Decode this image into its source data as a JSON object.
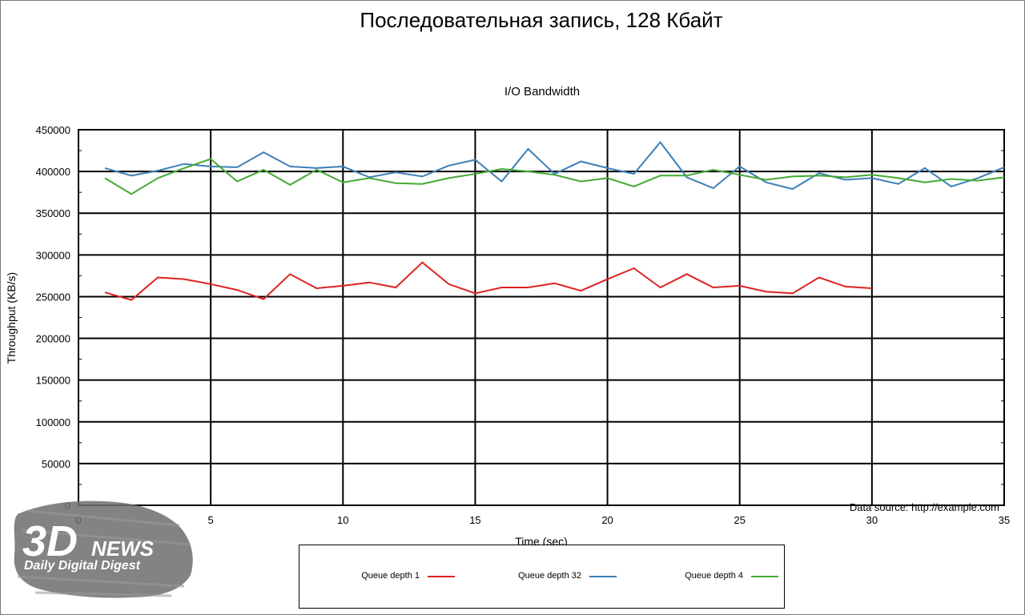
{
  "page_title": "Последовательная запись, 128 Кбайт",
  "watermark": {
    "brand_big": "3D",
    "brand_news": "NEWS",
    "tagline": "Daily Digital Digest"
  },
  "colors": {
    "red": "#dd2222",
    "blue": "#3c7fb8",
    "green": "#44aa33",
    "grid": "#000000"
  },
  "chart_data": {
    "type": "line",
    "title": "I/O Bandwidth",
    "xlabel": "Time (sec)",
    "ylabel": "Throughput (KB/s)",
    "xlim": [
      0,
      35
    ],
    "ylim": [
      0,
      450000
    ],
    "xticks": [
      0,
      5,
      10,
      15,
      20,
      25,
      30,
      35
    ],
    "yticks": [
      0,
      50000,
      100000,
      150000,
      200000,
      250000,
      300000,
      350000,
      400000,
      450000
    ],
    "grid": true,
    "annotation": "Data source: http://example.com",
    "legend_position": "bottom",
    "series": [
      {
        "name": "Queue depth 1",
        "color": "#dd2222",
        "x": [
          1,
          2,
          3,
          4,
          5,
          6,
          7,
          8,
          9,
          10,
          11,
          12,
          13,
          14,
          15,
          16,
          17,
          18,
          19,
          20,
          21,
          22,
          23,
          24,
          25,
          26,
          27,
          28,
          29,
          30
        ],
        "values": [
          255000,
          246000,
          273000,
          271000,
          265000,
          258000,
          247000,
          277000,
          260000,
          263000,
          267000,
          261000,
          291000,
          265000,
          254000,
          261000,
          261000,
          266000,
          257000,
          271000,
          284000,
          261000,
          277000,
          261000,
          263000,
          256000,
          254000,
          273000,
          262000,
          260000
        ]
      },
      {
        "name": "Queue depth 32",
        "color": "#3c7fb8",
        "x": [
          1,
          2,
          3,
          4,
          5,
          6,
          7,
          8,
          9,
          10,
          11,
          12,
          13,
          14,
          15,
          16,
          17,
          18,
          19,
          20,
          21,
          22,
          23,
          24,
          25,
          26,
          27,
          28,
          29,
          30,
          31,
          32,
          33,
          34,
          35
        ],
        "values": [
          404000,
          395000,
          401000,
          409000,
          406000,
          405000,
          423000,
          406000,
          404000,
          406000,
          393000,
          399000,
          394000,
          407000,
          414000,
          388000,
          427000,
          397000,
          412000,
          404000,
          397000,
          435000,
          393000,
          380000,
          406000,
          387000,
          379000,
          398000,
          390000,
          392000,
          385000,
          404000,
          382000,
          392000,
          405000
        ]
      },
      {
        "name": "Queue depth 4",
        "color": "#44aa33",
        "x": [
          1,
          2,
          3,
          4,
          5,
          6,
          7,
          8,
          9,
          10,
          11,
          12,
          13,
          14,
          15,
          16,
          17,
          18,
          19,
          20,
          21,
          22,
          23,
          24,
          25,
          26,
          27,
          28,
          29,
          30,
          31,
          32,
          33,
          34,
          35
        ],
        "values": [
          392000,
          373000,
          392000,
          404000,
          415000,
          388000,
          402000,
          384000,
          402000,
          387000,
          392000,
          386000,
          385000,
          392000,
          397000,
          403000,
          400000,
          396000,
          388000,
          392000,
          382000,
          395000,
          395000,
          402000,
          396000,
          390000,
          394000,
          395000,
          393000,
          396000,
          392000,
          387000,
          391000,
          389000,
          393000
        ]
      }
    ]
  }
}
